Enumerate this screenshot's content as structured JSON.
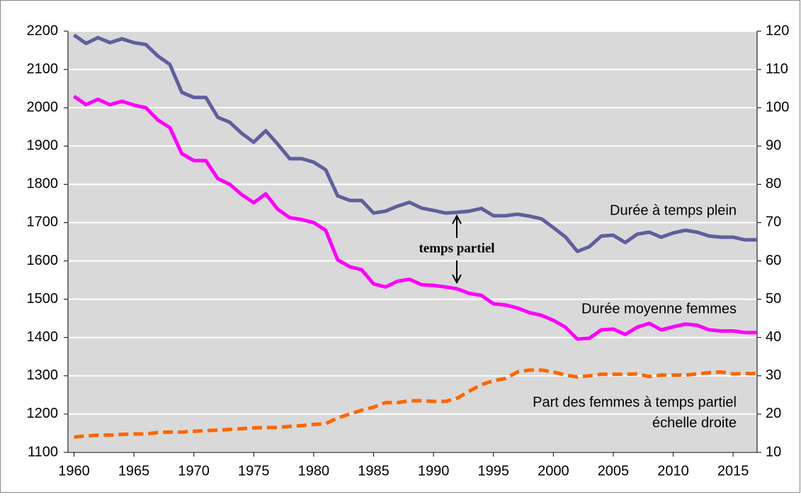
{
  "chart_data": {
    "type": "line",
    "x": [
      1960,
      1961,
      1962,
      1963,
      1964,
      1965,
      1966,
      1967,
      1968,
      1969,
      1970,
      1971,
      1972,
      1973,
      1974,
      1975,
      1976,
      1977,
      1978,
      1979,
      1980,
      1981,
      1982,
      1983,
      1984,
      1985,
      1986,
      1987,
      1988,
      1989,
      1990,
      1991,
      1992,
      1993,
      1994,
      1995,
      1996,
      1997,
      1998,
      1999,
      2000,
      2001,
      2002,
      2003,
      2004,
      2005,
      2006,
      2007,
      2008,
      2009,
      2010,
      2011,
      2012,
      2013,
      2014,
      2015,
      2016,
      2017
    ],
    "series": [
      {
        "name": "Durée à temps plein",
        "color": "#5f5f9c",
        "axis": "y",
        "values": [
          2190,
          2168,
          2183,
          2170,
          2180,
          2170,
          2165,
          2135,
          2113,
          2040,
          2027,
          2027,
          1975,
          1962,
          1933,
          1910,
          1940,
          1905,
          1867,
          1867,
          1858,
          1838,
          1770,
          1758,
          1758,
          1725,
          1730,
          1743,
          1753,
          1738,
          1732,
          1725,
          1727,
          1730,
          1737,
          1718,
          1718,
          1722,
          1717,
          1710,
          1687,
          1663,
          1625,
          1637,
          1665,
          1667,
          1648,
          1670,
          1675,
          1662,
          1673,
          1680,
          1675,
          1665,
          1662,
          1662,
          1655,
          1655
        ]
      },
      {
        "name": "Durée moyenne femmes",
        "color": "#ff00ff",
        "axis": "y",
        "values": [
          2030,
          2008,
          2022,
          2008,
          2017,
          2007,
          2000,
          1968,
          1948,
          1880,
          1862,
          1862,
          1815,
          1800,
          1773,
          1752,
          1775,
          1735,
          1713,
          1708,
          1700,
          1680,
          1603,
          1585,
          1577,
          1540,
          1532,
          1547,
          1552,
          1538,
          1536,
          1532,
          1527,
          1515,
          1510,
          1488,
          1485,
          1477,
          1465,
          1458,
          1445,
          1427,
          1396,
          1398,
          1420,
          1422,
          1408,
          1427,
          1437,
          1420,
          1428,
          1435,
          1432,
          1420,
          1417,
          1417,
          1413,
          1413
        ]
      },
      {
        "name": "Part des femmes à temps partiel",
        "color": "#ff6600",
        "axis": "y2",
        "dashed": true,
        "values": [
          14,
          14.3,
          14.5,
          14.5,
          14.7,
          14.8,
          14.8,
          15.2,
          15.3,
          15.3,
          15.5,
          15.7,
          15.8,
          16,
          16.2,
          16.4,
          16.5,
          16.5,
          16.8,
          17,
          17.3,
          17.5,
          19,
          20,
          21,
          21.8,
          23,
          23,
          23.5,
          23.5,
          23.3,
          23.3,
          24.2,
          26,
          27.7,
          28.7,
          29.3,
          31,
          31.5,
          31.5,
          31,
          30.2,
          29.7,
          30,
          30.4,
          30.4,
          30.4,
          30.5,
          29.8,
          30.2,
          30.2,
          30.2,
          30.5,
          30.8,
          31,
          30.5,
          30.6,
          30.6
        ]
      }
    ],
    "annotations": [
      "échelle droite",
      "temps partiel"
    ],
    "xlim": [
      1959.5,
      2017
    ],
    "xticks": [
      1960,
      1965,
      1970,
      1975,
      1980,
      1985,
      1990,
      1995,
      2000,
      2005,
      2010,
      2015
    ],
    "ylim": [
      1100,
      2200
    ],
    "yticks": [
      1100,
      1200,
      1300,
      1400,
      1500,
      1600,
      1700,
      1800,
      1900,
      2000,
      2100,
      2200
    ],
    "y2lim": [
      10,
      120
    ],
    "y2ticks": [
      10,
      20,
      30,
      40,
      50,
      60,
      70,
      80,
      90,
      100,
      110,
      120
    ],
    "grid": true
  }
}
